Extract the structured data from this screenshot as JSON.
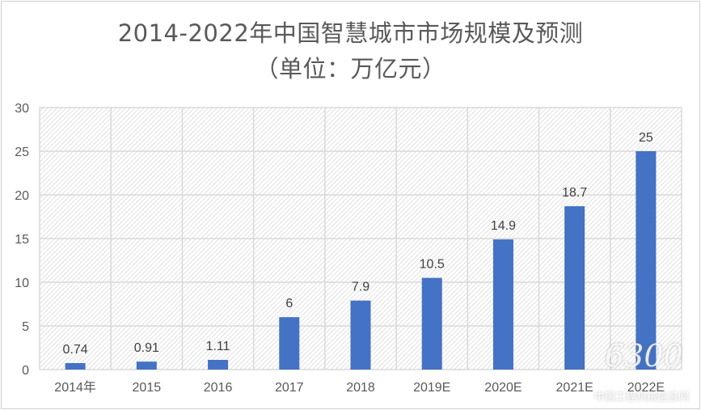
{
  "chart_data": {
    "type": "bar",
    "title": "2014-2022年中国智慧城市市场规模及预测",
    "subtitle": "（单位：万亿元）",
    "categories": [
      "2014年",
      "2015",
      "2016",
      "2017",
      "2018",
      "2019E",
      "2020E",
      "2021E",
      "2022E"
    ],
    "values": [
      0.74,
      0.91,
      1.11,
      6,
      7.9,
      10.5,
      14.9,
      18.7,
      25
    ],
    "data_labels": [
      "0.74",
      "0.91",
      "1.11",
      "6",
      "7.9",
      "10.5",
      "14.9",
      "18.7",
      "25"
    ],
    "xlabel": "",
    "ylabel": "",
    "ylim": [
      0,
      30
    ],
    "yticks": [
      "0",
      "5",
      "10",
      "15",
      "20",
      "25",
      "30"
    ],
    "grid": true,
    "legend": "none",
    "bar_color": "#4472c4"
  },
  "watermark": {
    "site": "www.6300.net",
    "name": "中国工程机械信息网"
  }
}
